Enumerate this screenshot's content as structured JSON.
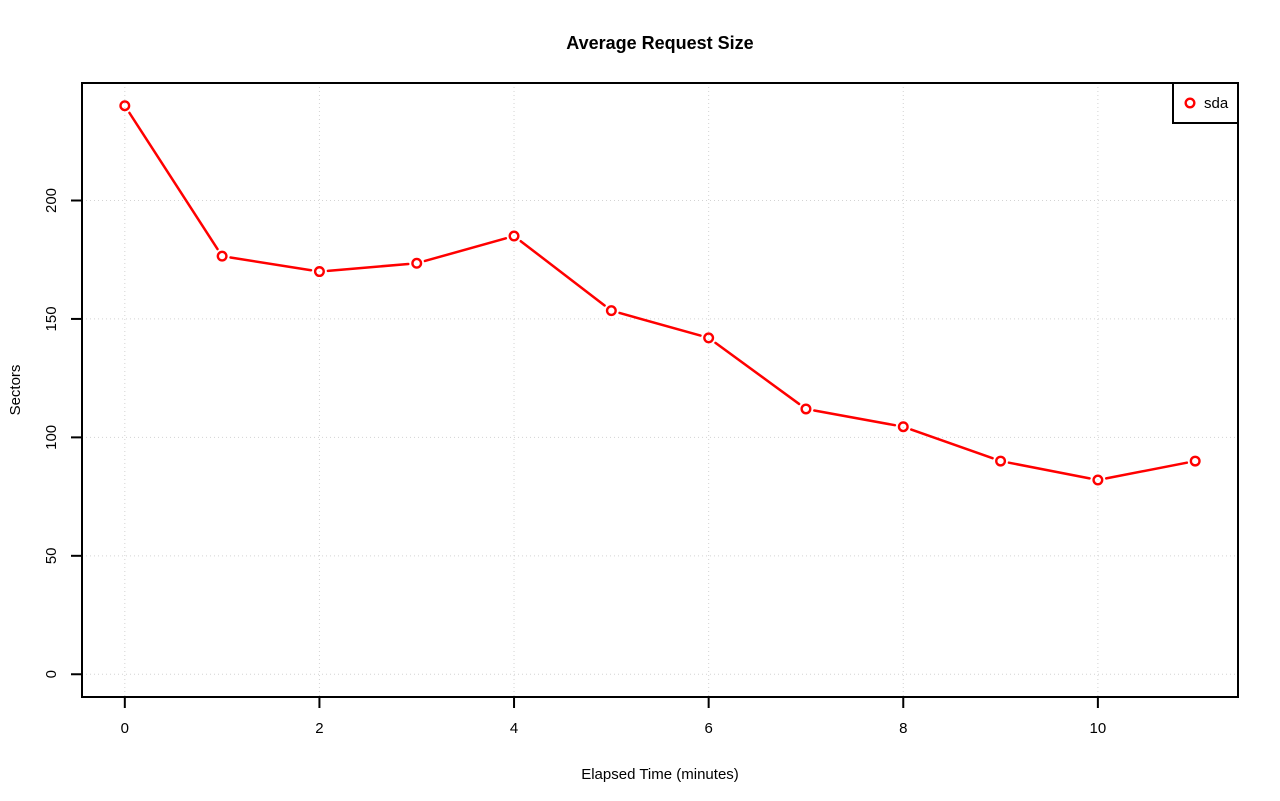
{
  "title": "Average Request Size",
  "colors": {
    "series": "#FF0000",
    "axis": "#000000",
    "grid": "#D3D3D3",
    "background": "#FFFFFF"
  },
  "legend": {
    "position": "top-right",
    "items": [
      {
        "label": "sda",
        "color": "#FF0000",
        "marker": "open-circle"
      }
    ]
  },
  "chart_data": {
    "type": "line",
    "title": "Average Request Size",
    "xlabel": "Elapsed Time (minutes)",
    "ylabel": "Sectors",
    "x": [
      0,
      1,
      2,
      3,
      4,
      5,
      6,
      7,
      8,
      9,
      10,
      11
    ],
    "series": [
      {
        "name": "sda",
        "color": "#FF0000",
        "marker": "open-circle",
        "line_style": "segments-with-marker-gaps",
        "values": [
          240,
          176.5,
          170,
          173.5,
          185,
          153.5,
          142,
          112,
          104.5,
          90,
          82,
          90
        ]
      }
    ],
    "xlim": [
      0,
      11
    ],
    "ylim": [
      0,
      240
    ],
    "axis_extension_frac": 0.04,
    "x_ticks": [
      0,
      2,
      4,
      6,
      8,
      10
    ],
    "y_ticks": [
      0,
      50,
      100,
      150,
      200
    ],
    "grid": true,
    "grid_style": "dotted",
    "grid_color": "#D3D3D3",
    "legend_position": "top-right",
    "legend_entries": [
      "sda"
    ]
  }
}
